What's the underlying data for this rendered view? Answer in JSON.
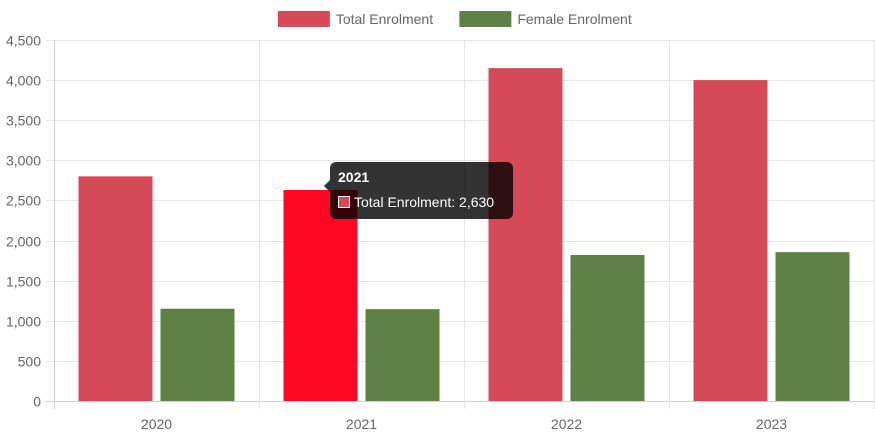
{
  "chart_data": {
    "type": "bar",
    "categories": [
      "2020",
      "2021",
      "2022",
      "2023"
    ],
    "series": [
      {
        "name": "Total Enrolment",
        "color": "#d64a58",
        "values": [
          2800,
          2630,
          4150,
          4000
        ]
      },
      {
        "name": "Female Enrolment",
        "color": "#5f8146",
        "values": [
          1150,
          1145,
          1820,
          1855
        ]
      }
    ],
    "ylim": [
      0,
      4500
    ],
    "yticks": [
      "0",
      "500",
      "1,000",
      "1,500",
      "2,000",
      "2,500",
      "3,000",
      "3,500",
      "4,000",
      "4,500"
    ],
    "ytick_values": [
      0,
      500,
      1000,
      1500,
      2000,
      2500,
      3000,
      3500,
      4000,
      4500
    ],
    "grid": true,
    "legend_position": "top",
    "highlight": {
      "series": 0,
      "category": 1,
      "color": "#fe0825"
    }
  },
  "tooltip": {
    "title": "2021",
    "text": "Total Enrolment: 2,630",
    "swatch_color": "#d64a58"
  }
}
